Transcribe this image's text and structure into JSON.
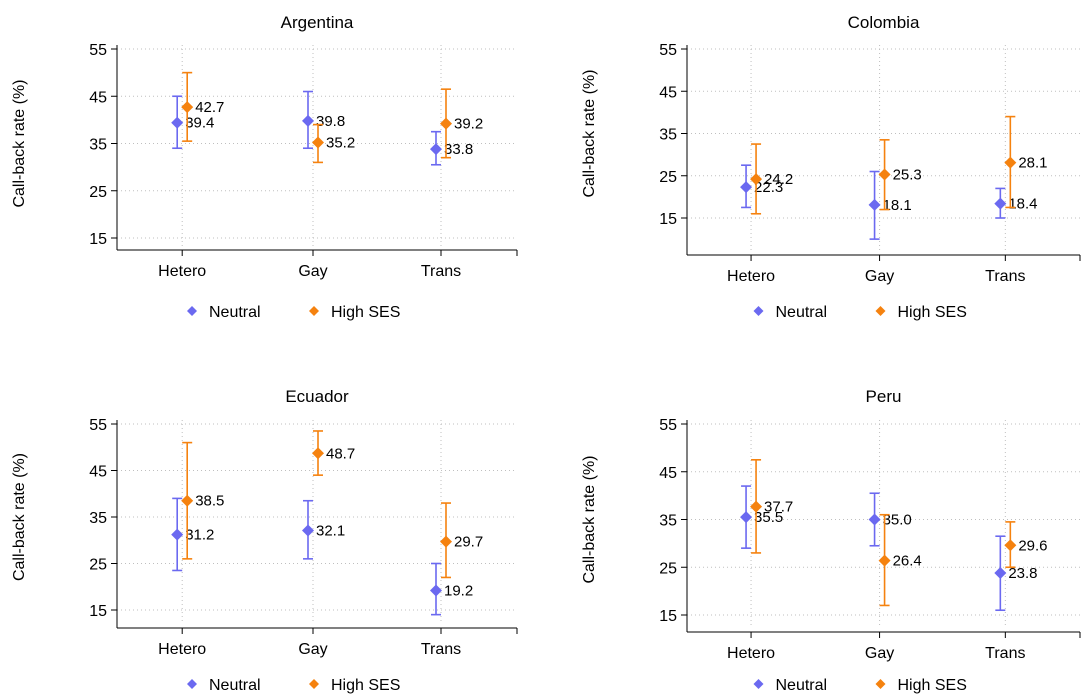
{
  "figure": {
    "y_axis_label": "Call-back rate (%)"
  },
  "colors": {
    "neutral": "#6B69F0",
    "high_ses": "#F5820F",
    "grid": "#bfbfbf",
    "axis": "#000000"
  },
  "icons": {
    "marker": "diamond-icon"
  },
  "chart_data": [
    {
      "type": "scatter",
      "subtype": "point-with-error-bars",
      "title": "Argentina",
      "xlabel": "",
      "ylabel": "Call-back rate (%)",
      "categories": [
        "Hetero",
        "Gay",
        "Trans"
      ],
      "ylim": [
        15,
        55
      ],
      "yticks": [
        "15",
        "25",
        "35",
        "45",
        "55"
      ],
      "grid": true,
      "legend_position": "bottom",
      "series": [
        {
          "name": "Neutral",
          "values": [
            39.4,
            39.8,
            33.8
          ],
          "labels": [
            "39.4",
            "39.8",
            "33.8"
          ],
          "ci_low": [
            34,
            34,
            30.5
          ],
          "ci_high": [
            45,
            46,
            37.5
          ]
        },
        {
          "name": "High SES",
          "values": [
            42.7,
            35.2,
            39.2
          ],
          "labels": [
            "42.7",
            "35.2",
            "39.2"
          ],
          "ci_low": [
            35.5,
            31,
            32
          ],
          "ci_high": [
            50,
            39,
            46.5
          ]
        }
      ]
    },
    {
      "type": "scatter",
      "subtype": "point-with-error-bars",
      "title": "Colombia",
      "xlabel": "",
      "ylabel": "Call-back rate (%)",
      "categories": [
        "Hetero",
        "Gay",
        "Trans"
      ],
      "ylim": [
        15,
        55
      ],
      "yticks": [
        "15",
        "25",
        "35",
        "45",
        "55"
      ],
      "grid": true,
      "legend_position": "bottom",
      "series": [
        {
          "name": "Neutral",
          "values": [
            22.3,
            18.1,
            18.4
          ],
          "labels": [
            "22.3",
            "18.1",
            "18.4"
          ],
          "ci_low": [
            17.5,
            10,
            15
          ],
          "ci_high": [
            27.5,
            26,
            22
          ]
        },
        {
          "name": "High SES",
          "values": [
            24.2,
            25.3,
            28.1
          ],
          "labels": [
            "24.2",
            "25.3",
            "28.1"
          ],
          "ci_low": [
            16,
            17,
            17.5
          ],
          "ci_high": [
            32.5,
            33.5,
            39
          ]
        }
      ]
    },
    {
      "type": "scatter",
      "subtype": "point-with-error-bars",
      "title": "Ecuador",
      "xlabel": "",
      "ylabel": "Call-back rate (%)",
      "categories": [
        "Hetero",
        "Gay",
        "Trans"
      ],
      "ylim": [
        15,
        55
      ],
      "yticks": [
        "15",
        "25",
        "35",
        "45",
        "55"
      ],
      "grid": true,
      "legend_position": "bottom",
      "series": [
        {
          "name": "Neutral",
          "values": [
            31.2,
            32.1,
            19.2
          ],
          "labels": [
            "31.2",
            "32.1",
            "19.2"
          ],
          "ci_low": [
            23.5,
            26,
            14
          ],
          "ci_high": [
            39,
            38.5,
            25
          ]
        },
        {
          "name": "High SES",
          "values": [
            38.5,
            48.7,
            29.7
          ],
          "labels": [
            "38.5",
            "48.7",
            "29.7"
          ],
          "ci_low": [
            26,
            44,
            22
          ],
          "ci_high": [
            51,
            53.5,
            38
          ]
        }
      ]
    },
    {
      "type": "scatter",
      "subtype": "point-with-error-bars",
      "title": "Peru",
      "xlabel": "",
      "ylabel": "Call-back rate (%)",
      "categories": [
        "Hetero",
        "Gay",
        "Trans"
      ],
      "ylim": [
        15,
        55
      ],
      "yticks": [
        "15",
        "25",
        "35",
        "45",
        "55"
      ],
      "grid": true,
      "legend_position": "bottom",
      "series": [
        {
          "name": "Neutral",
          "values": [
            35.5,
            35.0,
            23.8
          ],
          "labels": [
            "35.5",
            "35.0",
            "23.8"
          ],
          "ci_low": [
            29,
            29.5,
            16
          ],
          "ci_high": [
            42,
            40.5,
            31.5
          ]
        },
        {
          "name": "High SES",
          "values": [
            37.7,
            26.4,
            29.6
          ],
          "labels": [
            "37.7",
            "26.4",
            "29.6"
          ],
          "ci_low": [
            28,
            17,
            25
          ],
          "ci_high": [
            47.5,
            36,
            34.5
          ]
        }
      ]
    }
  ]
}
